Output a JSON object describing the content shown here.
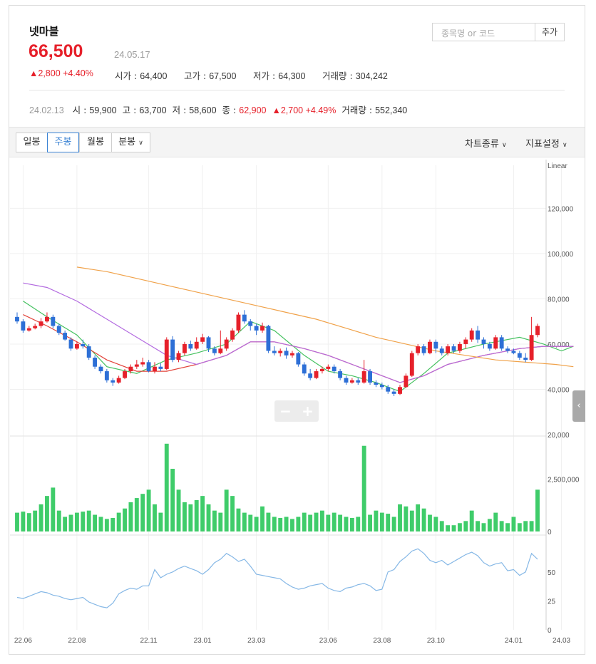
{
  "stock": {
    "name": "넷마블",
    "price": "66,500",
    "date": "24.05.17",
    "change": "▲2,800 +4.40%",
    "open_label": "시가",
    "open": "64,400",
    "high_label": "고가",
    "high": "67,500",
    "low_label": "저가",
    "low": "64,300",
    "volume_label": "거래량",
    "volume": "304,242"
  },
  "search": {
    "placeholder": "종목명 or 코드",
    "add_label": "추가"
  },
  "history": {
    "date": "24.02.13",
    "open_label": "시",
    "open": "59,900",
    "high_label": "고",
    "high": "63,700",
    "low_label": "저",
    "low": "58,600",
    "close_label": "종",
    "close": "62,900",
    "change": "▲2,700 +4.49%",
    "volume_label": "거래량",
    "volume": "552,340"
  },
  "toolbar": {
    "tabs": [
      "일봉",
      "주봉",
      "월봉",
      "분봉"
    ],
    "active_tab": "주봉",
    "chart_type": "차트종류",
    "indicator": "지표설정"
  },
  "zoom": {
    "minus": "−",
    "plus": "+"
  },
  "colors": {
    "up": "#e6202a",
    "down": "#2d6fd6",
    "volume": "#3fcc6a",
    "rsi": "#86b8e6",
    "ma5": "#44c15f",
    "ma20": "#e2433a",
    "ma60": "#b36be0",
    "ma120": "#f0a24a"
  },
  "chart_data": {
    "type": "candlestick",
    "scale_label": "Linear",
    "price_ticks": [
      "120,000",
      "100,000",
      "80,000",
      "60,000",
      "40,000",
      "20,000"
    ],
    "price_range": [
      20000,
      139000
    ],
    "volume_ticks": [
      "2,500,000",
      "0"
    ],
    "volume_range": [
      0,
      4500000
    ],
    "rsi_ticks": [
      "50",
      "25",
      "0"
    ],
    "rsi_range": [
      0,
      80
    ],
    "x_ticks": [
      {
        "label": "22.06",
        "i": 1
      },
      {
        "label": "22.08",
        "i": 10
      },
      {
        "label": "22.11",
        "i": 22
      },
      {
        "label": "23.01",
        "i": 31
      },
      {
        "label": "23.03",
        "i": 40
      },
      {
        "label": "23.06",
        "i": 52
      },
      {
        "label": "23.08",
        "i": 61
      },
      {
        "label": "23.10",
        "i": 70
      },
      {
        "label": "24.01",
        "i": 83
      },
      {
        "label": "24.03",
        "i": 91
      }
    ],
    "candles": [
      [
        72000,
        70000,
        74000,
        69000
      ],
      [
        70000,
        66000,
        71000,
        65000
      ],
      [
        66000,
        67000,
        68000,
        65500
      ],
      [
        67000,
        68000,
        69000,
        66500
      ],
      [
        68000,
        70000,
        71500,
        67000
      ],
      [
        70000,
        72000,
        74000,
        69500
      ],
      [
        72000,
        68000,
        73000,
        67000
      ],
      [
        68000,
        65000,
        69000,
        64000
      ],
      [
        65000,
        62000,
        66000,
        61500
      ],
      [
        62000,
        58000,
        63000,
        57000
      ],
      [
        58000,
        60000,
        61000,
        57500
      ],
      [
        60000,
        59000,
        62000,
        58000
      ],
      [
        59000,
        54000,
        60000,
        53000
      ],
      [
        54000,
        50000,
        55000,
        49000
      ],
      [
        50000,
        48000,
        51000,
        47000
      ],
      [
        48000,
        44000,
        49000,
        43000
      ],
      [
        44000,
        43000,
        45000,
        41500
      ],
      [
        43000,
        45000,
        46000,
        42500
      ],
      [
        45000,
        48000,
        49000,
        44500
      ],
      [
        48000,
        50000,
        51000,
        47000
      ],
      [
        50000,
        51000,
        53000,
        49000
      ],
      [
        51000,
        52000,
        54000,
        50000
      ],
      [
        52000,
        48000,
        53000,
        47500
      ],
      [
        48000,
        50000,
        52000,
        47000
      ],
      [
        50000,
        49000,
        51500,
        48000
      ],
      [
        49000,
        62000,
        63000,
        48500
      ],
      [
        62000,
        53000,
        63500,
        52000
      ],
      [
        53000,
        56000,
        57000,
        52000
      ],
      [
        56000,
        60000,
        61000,
        55000
      ],
      [
        60000,
        58000,
        61500,
        57000
      ],
      [
        58000,
        61000,
        63000,
        57500
      ],
      [
        61000,
        63000,
        64500,
        60000
      ],
      [
        63000,
        58000,
        63500,
        56500
      ],
      [
        58000,
        56000,
        59000,
        55000
      ],
      [
        56000,
        58000,
        66000,
        55500
      ],
      [
        58000,
        62000,
        63000,
        57000
      ],
      [
        62000,
        66000,
        67000,
        61000
      ],
      [
        66000,
        73000,
        74000,
        65000
      ],
      [
        73000,
        70000,
        75000,
        69000
      ],
      [
        70000,
        68000,
        71000,
        66000
      ],
      [
        68000,
        66000,
        69000,
        64000
      ],
      [
        66000,
        68000,
        69500,
        65000
      ],
      [
        68000,
        57000,
        68500,
        56000
      ],
      [
        57000,
        56000,
        59000,
        55000
      ],
      [
        56000,
        57000,
        58000,
        54500
      ],
      [
        57000,
        55000,
        58500,
        53500
      ],
      [
        55000,
        56000,
        57000,
        54000
      ],
      [
        56000,
        51000,
        56500,
        50000
      ],
      [
        51000,
        47000,
        52000,
        46000
      ],
      [
        47000,
        45000,
        49000,
        44000
      ],
      [
        45000,
        48000,
        49000,
        44500
      ],
      [
        48000,
        49000,
        50000,
        47000
      ],
      [
        49000,
        50000,
        51000,
        48000
      ],
      [
        50000,
        48000,
        51000,
        47000
      ],
      [
        48000,
        45000,
        49000,
        44000
      ],
      [
        45000,
        43000,
        46000,
        42000
      ],
      [
        43000,
        44000,
        45000,
        42500
      ],
      [
        44000,
        43000,
        45000,
        42000
      ],
      [
        43000,
        48000,
        53000,
        42500
      ],
      [
        48000,
        43000,
        49000,
        42000
      ],
      [
        43000,
        42000,
        44000,
        41000
      ],
      [
        42000,
        41000,
        43000,
        40000
      ],
      [
        41000,
        39000,
        42000,
        38000
      ],
      [
        39000,
        38000,
        40000,
        37000
      ],
      [
        38000,
        41000,
        42000,
        37500
      ],
      [
        41000,
        46000,
        47000,
        40500
      ],
      [
        46000,
        56000,
        57000,
        45500
      ],
      [
        56000,
        59000,
        60000,
        55000
      ],
      [
        59000,
        56000,
        60000,
        55000
      ],
      [
        56000,
        61000,
        62000,
        55500
      ],
      [
        61000,
        58000,
        62000,
        56000
      ],
      [
        58000,
        56000,
        59000,
        55000
      ],
      [
        56000,
        59000,
        60000,
        55000
      ],
      [
        59000,
        57000,
        60000,
        56000
      ],
      [
        57000,
        60000,
        61000,
        56000
      ],
      [
        60000,
        62000,
        63000,
        58000
      ],
      [
        62000,
        66000,
        67000,
        61000
      ],
      [
        66000,
        62000,
        68000,
        60500
      ],
      [
        62000,
        60000,
        63000,
        58000
      ],
      [
        60000,
        58000,
        61000,
        57000
      ],
      [
        58000,
        63000,
        64000,
        57500
      ],
      [
        63000,
        58000,
        64000,
        57000
      ],
      [
        58000,
        57000,
        59000,
        56000
      ],
      [
        57000,
        56000,
        58000,
        55500
      ],
      [
        56000,
        54000,
        57000,
        53000
      ],
      [
        54000,
        53000,
        56000,
        52000
      ],
      [
        53000,
        64000,
        72000,
        52500
      ],
      [
        64000,
        68000,
        69000,
        63000
      ]
    ],
    "volumes": [
      900000,
      950000,
      880000,
      1000000,
      1300000,
      1700000,
      2100000,
      1000000,
      700000,
      800000,
      900000,
      950000,
      1000000,
      800000,
      700000,
      600000,
      650000,
      900000,
      1100000,
      1400000,
      1600000,
      1800000,
      2000000,
      1300000,
      900000,
      4200000,
      3000000,
      2000000,
      1400000,
      1300000,
      1500000,
      1700000,
      1300000,
      1000000,
      900000,
      2000000,
      1700000,
      1100000,
      900000,
      800000,
      700000,
      1200000,
      900000,
      700000,
      650000,
      700000,
      600000,
      700000,
      900000,
      800000,
      900000,
      1000000,
      800000,
      900000,
      800000,
      700000,
      650000,
      700000,
      4100000,
      800000,
      1000000,
      900000,
      850000,
      700000,
      1300000,
      1200000,
      1000000,
      1300000,
      1100000,
      800000,
      700000,
      500000,
      300000,
      300000,
      400000,
      500000,
      1000000,
      500000,
      400000,
      600000,
      900000,
      500000,
      400000,
      700000,
      400000,
      500000,
      500000,
      2000000,
      1200000,
      1300000
    ],
    "rsi": [
      28,
      27,
      29,
      31,
      33,
      32,
      30,
      29,
      27,
      26,
      27,
      28,
      24,
      22,
      20,
      19,
      23,
      31,
      34,
      36,
      35,
      38,
      38,
      52,
      45,
      48,
      50,
      53,
      55,
      53,
      51,
      48,
      52,
      58,
      61,
      66,
      63,
      59,
      61,
      55,
      48,
      47,
      46,
      45,
      44,
      40,
      37,
      35,
      36,
      38,
      39,
      40,
      36,
      34,
      33,
      36,
      37,
      39,
      40,
      38,
      34,
      35,
      50,
      52,
      59,
      63,
      68,
      70,
      66,
      60,
      58,
      60,
      56,
      59,
      62,
      65,
      67,
      64,
      58,
      55,
      57,
      58,
      51,
      52,
      47,
      50,
      66,
      61
    ],
    "ma": {
      "ma5": [
        [
          1,
          79000
        ],
        [
          5,
          72000
        ],
        [
          10,
          64000
        ],
        [
          15,
          50000
        ],
        [
          20,
          47000
        ],
        [
          25,
          53000
        ],
        [
          30,
          56000
        ],
        [
          35,
          60000
        ],
        [
          39,
          70000
        ],
        [
          43,
          66000
        ],
        [
          48,
          55000
        ],
        [
          52,
          48000
        ],
        [
          56,
          46000
        ],
        [
          60,
          43000
        ],
        [
          64,
          39000
        ],
        [
          68,
          47000
        ],
        [
          72,
          56000
        ],
        [
          78,
          60000
        ],
        [
          84,
          63000
        ],
        [
          88,
          60000
        ],
        [
          91,
          57000
        ],
        [
          93,
          59000
        ]
      ],
      "ma20": [
        [
          1,
          73000
        ],
        [
          5,
          68000
        ],
        [
          10,
          61000
        ],
        [
          15,
          53000
        ],
        [
          20,
          48000
        ],
        [
          25,
          48000
        ],
        [
          30,
          51000
        ],
        [
          35,
          55000
        ],
        [
          39,
          61000
        ],
        [
          43,
          61000
        ],
        [
          48,
          58000
        ],
        [
          52,
          55000
        ],
        [
          56,
          51000
        ],
        [
          60,
          47000
        ],
        [
          64,
          43000
        ],
        [
          68,
          46000
        ],
        [
          72,
          51000
        ],
        [
          78,
          55000
        ],
        [
          84,
          58000
        ],
        [
          88,
          59000
        ],
        [
          91,
          59000
        ],
        [
          93,
          59000
        ]
      ],
      "ma60": [
        [
          1,
          87000
        ],
        [
          5,
          85000
        ],
        [
          10,
          79000
        ],
        [
          15,
          71000
        ],
        [
          20,
          63000
        ],
        [
          25,
          55000
        ],
        [
          30,
          51000
        ],
        [
          35,
          55000
        ],
        [
          39,
          61000
        ],
        [
          43,
          61000
        ],
        [
          48,
          58000
        ],
        [
          52,
          55000
        ],
        [
          56,
          51000
        ],
        [
          60,
          47000
        ],
        [
          64,
          43000
        ],
        [
          68,
          46000
        ],
        [
          72,
          51000
        ],
        [
          78,
          55000
        ],
        [
          84,
          58000
        ],
        [
          88,
          59000
        ],
        [
          91,
          59000
        ],
        [
          93,
          59000
        ]
      ],
      "ma120": [
        [
          10,
          94000
        ],
        [
          15,
          92000
        ],
        [
          20,
          89000
        ],
        [
          25,
          86000
        ],
        [
          30,
          83000
        ],
        [
          35,
          80000
        ],
        [
          40,
          77000
        ],
        [
          45,
          74000
        ],
        [
          50,
          71000
        ],
        [
          55,
          67000
        ],
        [
          60,
          63000
        ],
        [
          65,
          60000
        ],
        [
          70,
          57000
        ],
        [
          75,
          55000
        ],
        [
          80,
          53000
        ],
        [
          85,
          52000
        ],
        [
          90,
          51000
        ],
        [
          93,
          50000
        ]
      ]
    }
  }
}
